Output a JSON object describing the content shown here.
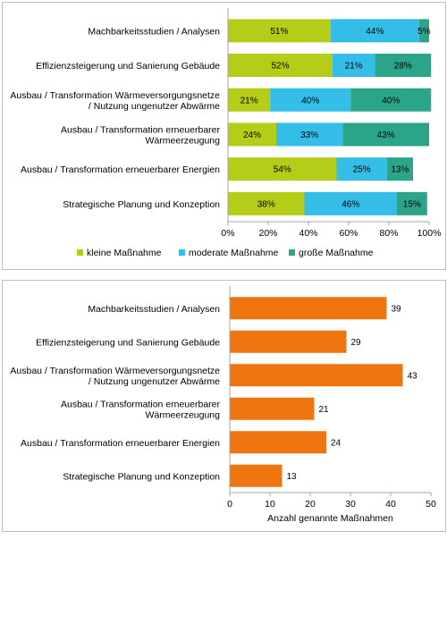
{
  "chart_data": [
    {
      "type": "bar",
      "orientation": "horizontal",
      "stacked": true,
      "normalized": true,
      "categories": [
        "Machbarkeitsstudien / Analysen",
        "Effizienzsteigerung und Sanierung Gebäude",
        "Ausbau / Transformation Wärmeversorgungsnetze / Nutzung ungenutzer Abwärme",
        "Ausbau / Transformation erneuerbarer Wärmeerzeugung",
        "Ausbau / Transformation erneuerbarer Energien",
        "Strategische Planung und Konzeption"
      ],
      "category_lines": [
        [
          "Machbarkeitsstudien / Analysen"
        ],
        [
          "Effizienzsteigerung und Sanierung Gebäude"
        ],
        [
          "Ausbau / Transformation Wärmeversorgungsnetze",
          "/ Nutzung ungenutzer Abwärme"
        ],
        [
          "Ausbau / Transformation erneuerbarer",
          "Wärmeerzeugung"
        ],
        [
          "Ausbau / Transformation erneuerbarer Energien"
        ],
        [
          "Strategische Planung und Konzeption"
        ]
      ],
      "series": [
        {
          "name": "kleine Maßnahme",
          "color": "#b5cc18",
          "values": [
            51,
            52,
            21,
            24,
            54,
            38
          ]
        },
        {
          "name": "moderate Maßnahme",
          "color": "#34bde6",
          "values": [
            44,
            21,
            40,
            33,
            25,
            46
          ]
        },
        {
          "name": "große Maßnahme",
          "color": "#2ba589",
          "values": [
            5,
            28,
            40,
            43,
            13,
            15
          ]
        }
      ],
      "value_suffix": "%",
      "xlim": [
        0,
        100
      ],
      "xticks": [
        0,
        20,
        40,
        60,
        80,
        100
      ],
      "xtick_labels": [
        "0%",
        "20%",
        "40%",
        "60%",
        "80%",
        "100%"
      ],
      "grid": false,
      "legend_position": "bottom"
    },
    {
      "type": "bar",
      "orientation": "horizontal",
      "categories": [
        "Machbarkeitsstudien / Analysen",
        "Effizienzsteigerung und Sanierung Gebäude",
        "Ausbau / Transformation Wärmeversorgungsnetze / Nutzung ungenutzer Abwärme",
        "Ausbau / Transformation erneuerbarer Wärmeerzeugung",
        "Ausbau / Transformation erneuerbarer Energien",
        "Strategische Planung und Konzeption"
      ],
      "category_lines": [
        [
          "Machbarkeitsstudien / Analysen"
        ],
        [
          "Effizienzsteigerung und Sanierung Gebäude"
        ],
        [
          "Ausbau / Transformation Wärmeversorgungsnetze",
          "/ Nutzung ungenutzer Abwärme"
        ],
        [
          "Ausbau / Transformation erneuerbarer",
          "Wärmeerzeugung"
        ],
        [
          "Ausbau / Transformation erneuerbarer Energien"
        ],
        [
          "Strategische Planung und Konzeption"
        ]
      ],
      "values": [
        39,
        29,
        43,
        21,
        24,
        13
      ],
      "color": "#ee7510",
      "xlabel": "Anzahl genannte Maßnahmen",
      "xlim": [
        0,
        50
      ],
      "xticks": [
        0,
        10,
        20,
        30,
        40,
        50
      ],
      "xtick_labels": [
        "0",
        "10",
        "20",
        "30",
        "40",
        "50"
      ],
      "grid": false
    }
  ]
}
